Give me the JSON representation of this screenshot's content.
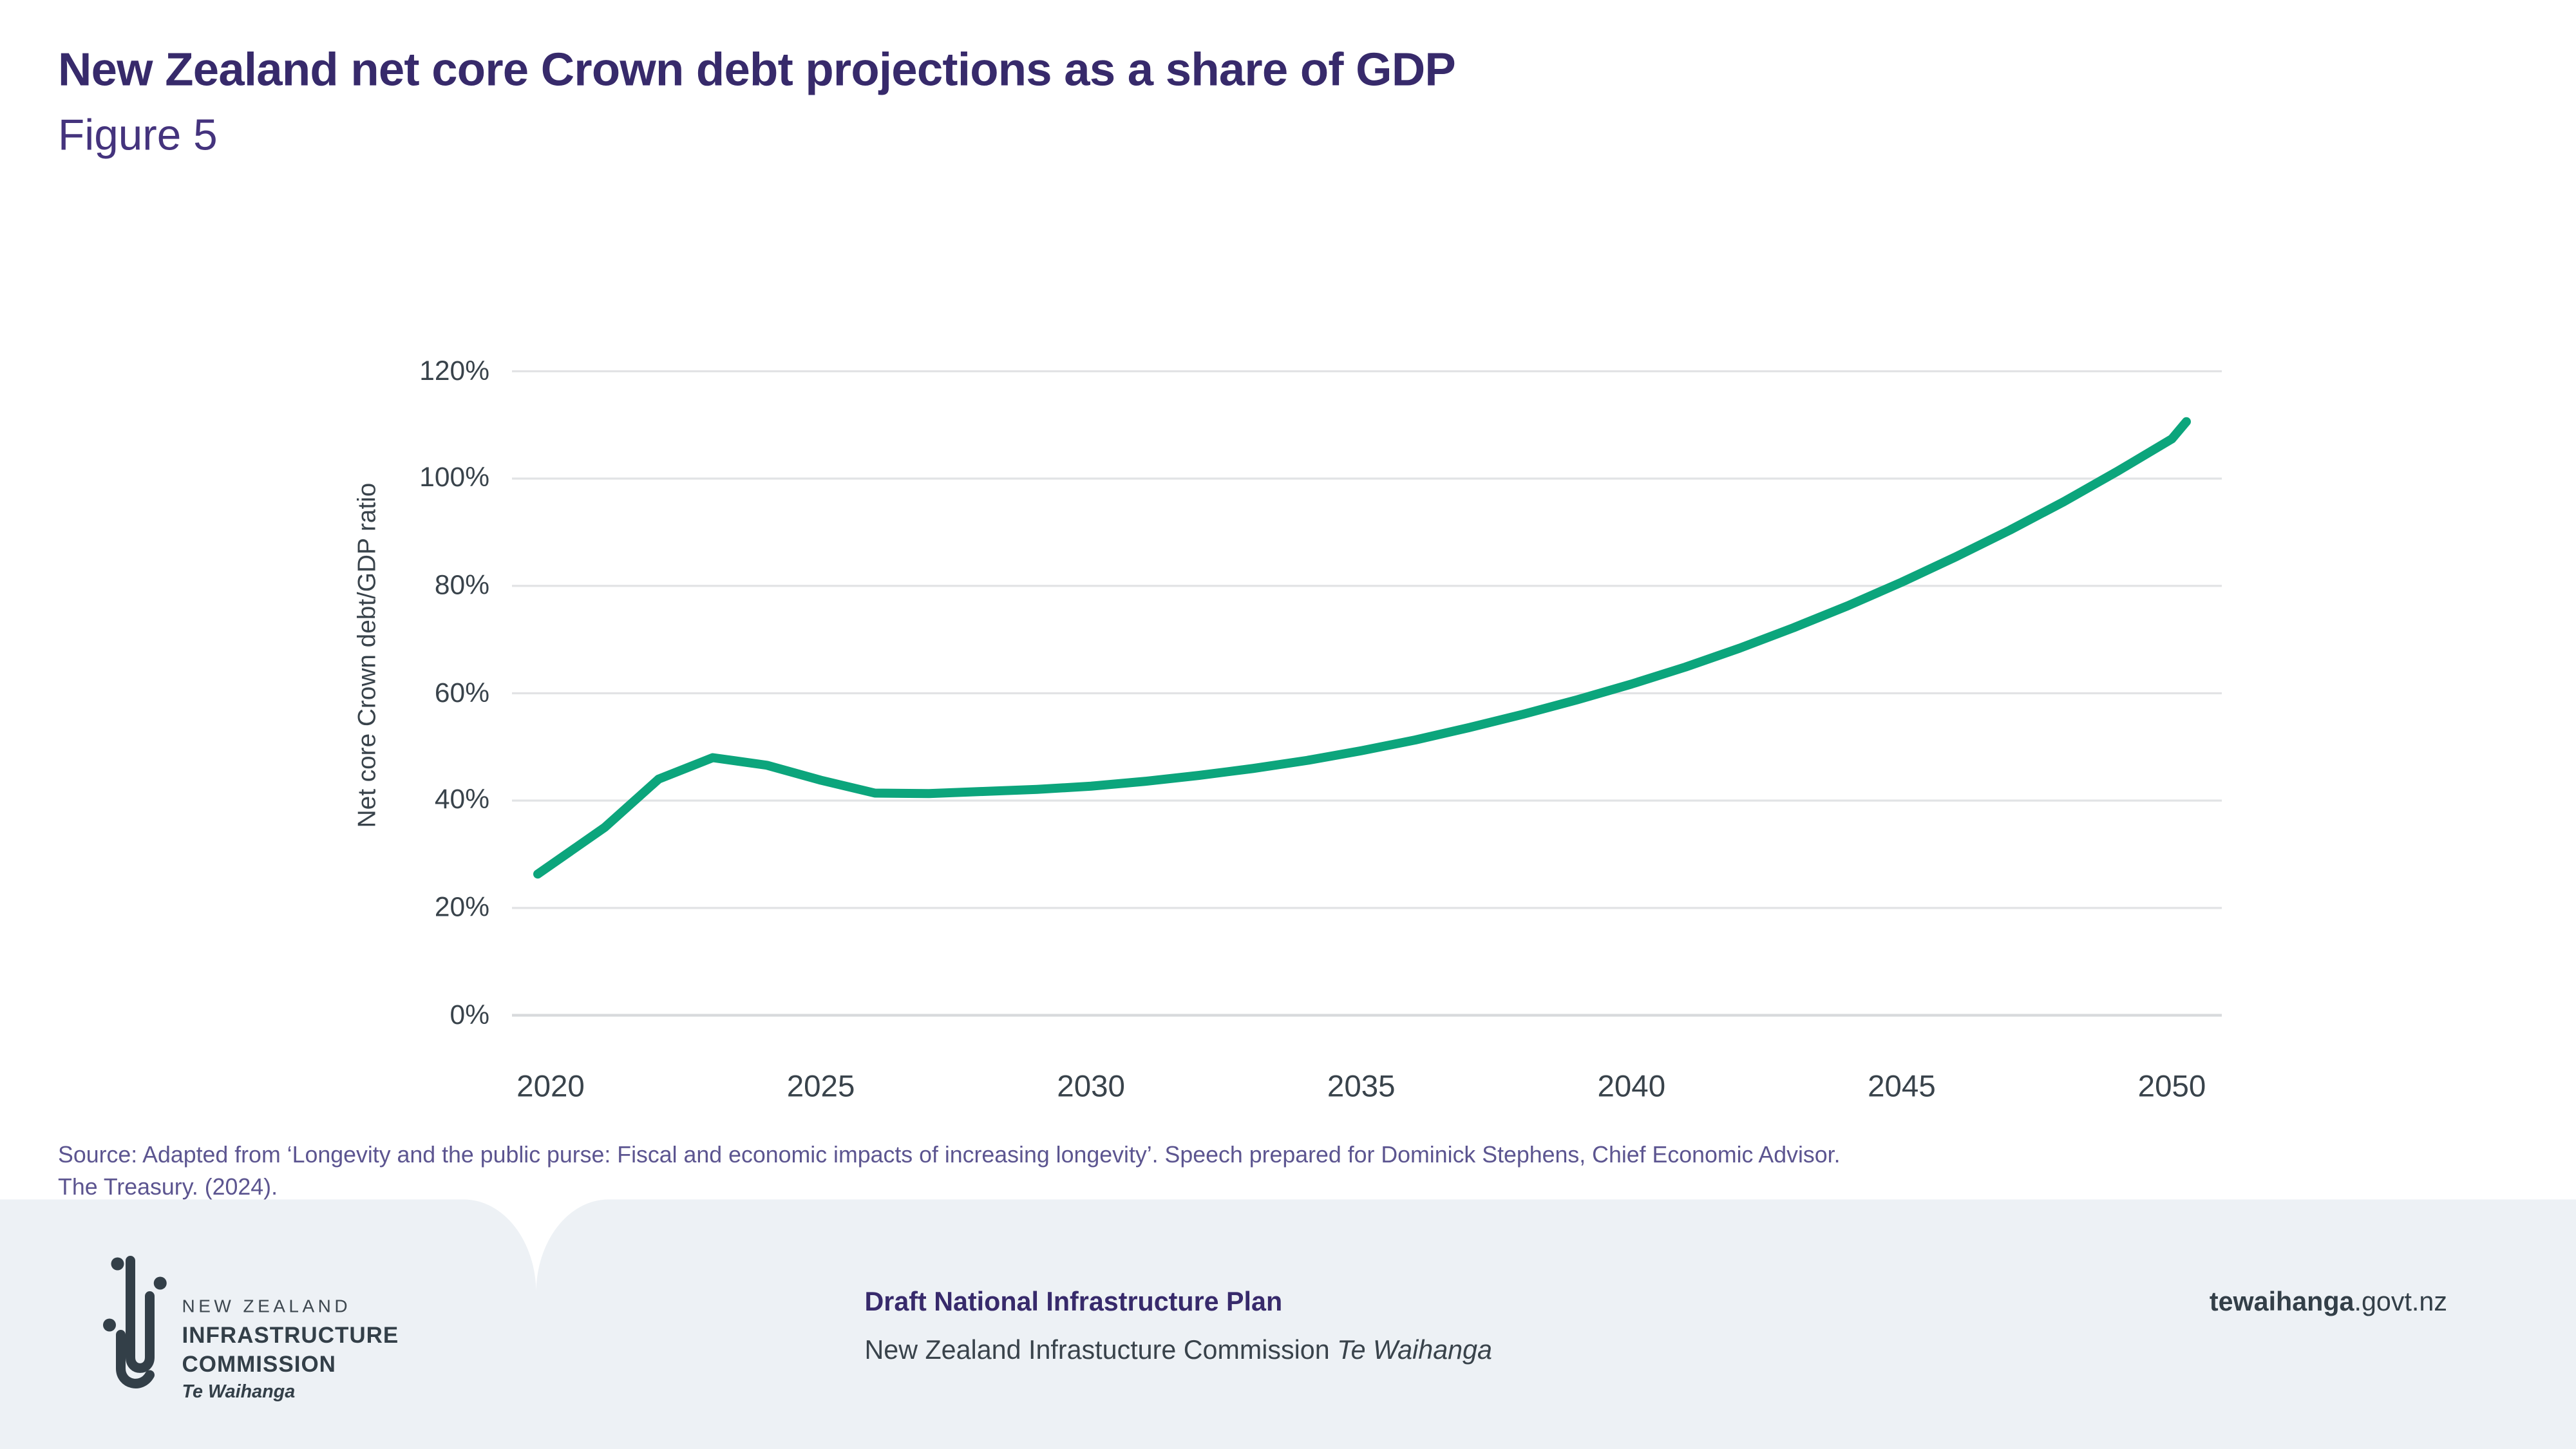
{
  "header": {
    "title": "New Zealand net core Crown debt projections as a share of GDP",
    "figure_label": "Figure 5"
  },
  "chart_data": {
    "type": "line",
    "title": "New Zealand net core Crown debt projections as a share of GDP",
    "xlabel": "",
    "ylabel": "Net core Crown debt/GDP ratio",
    "ylim": [
      0,
      120
    ],
    "xlim": [
      2020,
      2050
    ],
    "grid": "horizontal-only",
    "legend_position": "none",
    "y_ticks": [
      {
        "value": 0,
        "label": "0%"
      },
      {
        "value": 20,
        "label": "20%"
      },
      {
        "value": 40,
        "label": "40%"
      },
      {
        "value": 60,
        "label": "60%"
      },
      {
        "value": 80,
        "label": "80%"
      },
      {
        "value": 100,
        "label": "100%"
      },
      {
        "value": 120,
        "label": "120%"
      }
    ],
    "x_ticks": [
      {
        "value": 2020,
        "label": "2020"
      },
      {
        "value": 2025,
        "label": "2025"
      },
      {
        "value": 2030,
        "label": "2030"
      },
      {
        "value": 2035,
        "label": "2035"
      },
      {
        "value": 2040,
        "label": "2040"
      },
      {
        "value": 2045,
        "label": "2045"
      },
      {
        "value": 2050,
        "label": "2050"
      }
    ],
    "series": [
      {
        "name": "Net core Crown debt (% of GDP)",
        "color": "#0ca57c",
        "x": [
          2020,
          2021,
          2022,
          2023,
          2024,
          2025,
          2026,
          2027,
          2028,
          2029,
          2030,
          2031,
          2032,
          2033,
          2034,
          2035,
          2036,
          2037,
          2038,
          2039,
          2040,
          2041,
          2042,
          2043,
          2044,
          2045,
          2046,
          2047,
          2048,
          2049,
          2050
        ],
        "values": [
          26.3,
          35.0,
          44.0,
          48.0,
          46.6,
          43.8,
          41.4,
          41.3,
          41.7,
          42.1,
          42.7,
          43.6,
          44.7,
          46.0,
          47.5,
          49.3,
          51.3,
          53.6,
          56.1,
          58.8,
          61.7,
          64.9,
          68.4,
          72.2,
          76.3,
          80.7,
          85.4,
          90.4,
          95.7,
          101.4,
          107.4
        ]
      }
    ]
  },
  "source": {
    "line1": "Source: Adapted from ‘Longevity and the public purse: Fiscal and economic impacts of increasing longevity’. Speech prepared for Dominick Stephens, Chief Economic Advisor.",
    "line2": "The Treasury. (2024)."
  },
  "footer": {
    "logo": {
      "line1": "NEW ZEALAND",
      "line2": "INFRASTRUCTURE",
      "line3": "COMMISSION",
      "line4": "Te Waihanga"
    },
    "plan_title": "Draft National Infrastructure Plan",
    "organisation": "New Zealand Infrastucture Commission",
    "organisation_italic": "Te Waihanga",
    "website_bold": "tewaihanga",
    "website_rest": ".govt.nz"
  },
  "colors": {
    "title": "#372a6b",
    "figure_label": "#44337d",
    "axis_text": "#39434b",
    "grid": "#e2e3e5",
    "grid_zero": "#d8dadc",
    "line": "#0ca57c",
    "source_text": "#5c5590",
    "footer_bg": "#edf1f5",
    "footer_dark": "#333f48"
  }
}
